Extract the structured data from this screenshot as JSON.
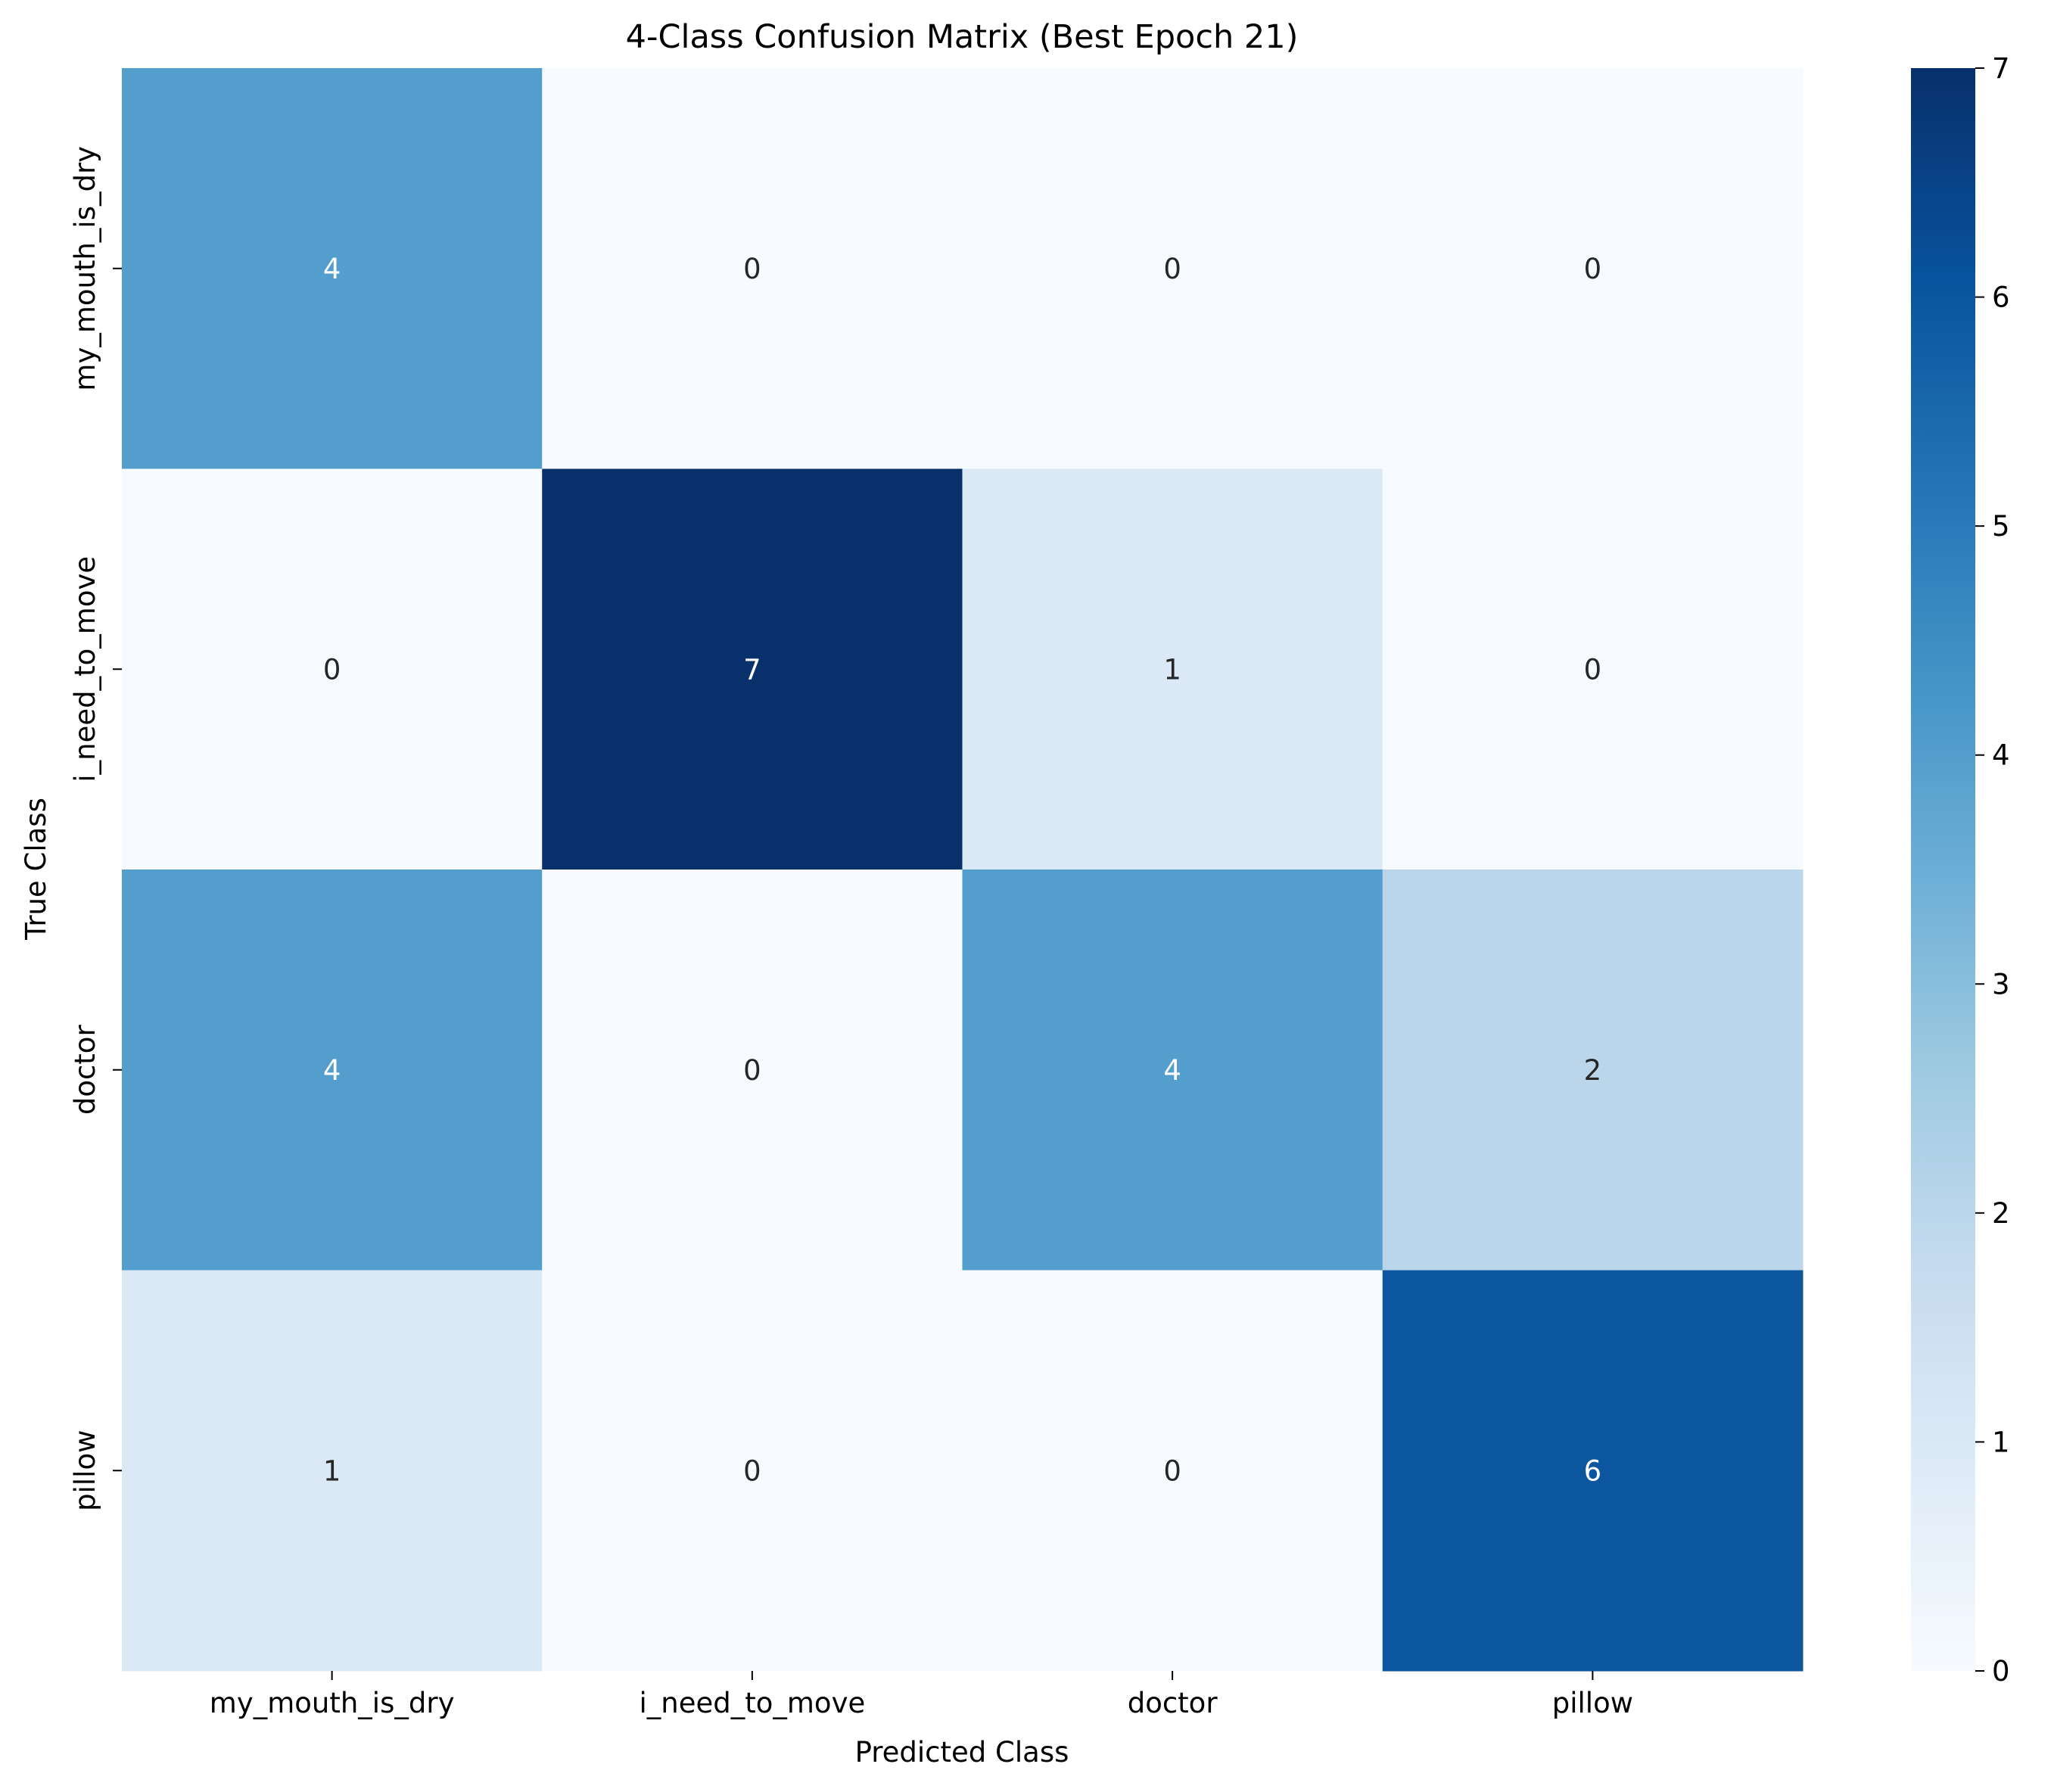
{
  "chart_data": {
    "type": "heatmap",
    "title": "4-Class Confusion Matrix (Best Epoch 21)",
    "xlabel": "Predicted Class",
    "ylabel": "True Class",
    "x_categories": [
      "my_mouth_is_dry",
      "i_need_to_move",
      "doctor",
      "pillow"
    ],
    "y_categories": [
      "my_mouth_is_dry",
      "i_need_to_move",
      "doctor",
      "pillow"
    ],
    "values": [
      [
        4,
        0,
        0,
        0
      ],
      [
        0,
        7,
        1,
        0
      ],
      [
        4,
        0,
        4,
        2
      ],
      [
        1,
        0,
        0,
        6
      ]
    ],
    "colormap": "Blues",
    "vmin": 0,
    "vmax": 7,
    "colorbar_ticks": [
      0,
      1,
      2,
      3,
      4,
      5,
      6,
      7
    ]
  }
}
